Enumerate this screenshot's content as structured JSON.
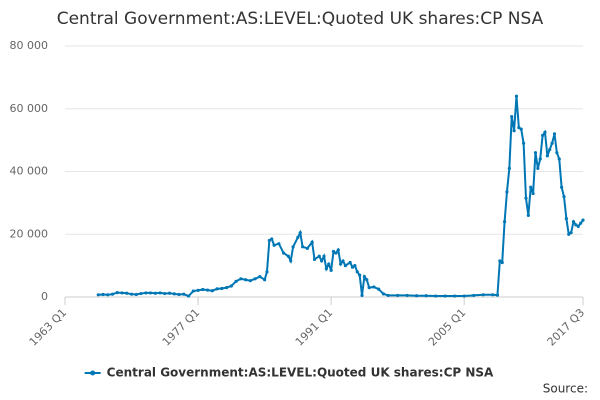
{
  "chart_data": {
    "type": "line",
    "title": "Central Government:AS:LEVEL:Quoted UK shares:CP NSA",
    "source": "Source:",
    "xlim": [
      1963,
      2017.5
    ],
    "xticks": [
      {
        "value": 1963,
        "label": "1963 Q1"
      },
      {
        "value": 1977,
        "label": "1977 Q1"
      },
      {
        "value": 1991,
        "label": "1991 Q1"
      },
      {
        "value": 2005,
        "label": "2005 Q1"
      },
      {
        "value": 2017.5,
        "label": "2017 Q3"
      }
    ],
    "ylim": [
      0,
      80000
    ],
    "yticks": [
      {
        "value": 0,
        "label": "0"
      },
      {
        "value": 20000,
        "label": "20 000"
      },
      {
        "value": 40000,
        "label": "40 000"
      },
      {
        "value": 60000,
        "label": "60 000"
      },
      {
        "value": 80000,
        "label": "80 000"
      }
    ],
    "grid": true,
    "series": [
      {
        "name": "Central Government:AS:LEVEL:Quoted UK shares:CP NSA",
        "color": "#0077b5",
        "x": [
          1966.5,
          1967,
          1967.5,
          1968,
          1968.5,
          1969,
          1969.5,
          1970,
          1970.5,
          1971,
          1971.5,
          1972,
          1972.5,
          1973,
          1973.5,
          1974,
          1974.5,
          1975,
          1975.5,
          1976,
          1976.5,
          1977,
          1977.5,
          1978,
          1978.5,
          1979,
          1979.5,
          1980,
          1980.5,
          1981,
          1981.5,
          1982,
          1982.5,
          1983,
          1983.5,
          1984,
          1984.25,
          1984.5,
          1984.75,
          1985,
          1985.5,
          1986,
          1986.5,
          1986.75,
          1987,
          1987.5,
          1987.75,
          1988,
          1988.5,
          1989,
          1989.25,
          1989.75,
          1990,
          1990.25,
          1990.5,
          1990.75,
          1991,
          1991.25,
          1991.5,
          1991.75,
          1992,
          1992.25,
          1992.5,
          1993,
          1993.25,
          1993.5,
          1993.75,
          1994,
          1994.25,
          1994.5,
          1994.75,
          1995,
          1995.5,
          1996,
          1996.5,
          1997,
          1998,
          1999,
          2000,
          2001,
          2002,
          2003,
          2004,
          2005,
          2006,
          2007,
          2008,
          2008.5,
          2008.75,
          2009,
          2009.25,
          2009.5,
          2009.75,
          2010,
          2010.25,
          2010.5,
          2010.75,
          2011,
          2011.25,
          2011.5,
          2011.75,
          2012,
          2012.25,
          2012.5,
          2012.75,
          2013,
          2013.25,
          2013.5,
          2013.75,
          2014,
          2014.25,
          2014.5,
          2014.75,
          2015,
          2015.25,
          2015.5,
          2015.75,
          2016,
          2016.25,
          2016.5,
          2016.75,
          2017,
          2017.25,
          2017.5
        ],
        "values": [
          700,
          800,
          700,
          900,
          1400,
          1300,
          1200,
          900,
          800,
          1100,
          1300,
          1300,
          1200,
          1300,
          1100,
          1200,
          1000,
          800,
          900,
          300,
          1900,
          2100,
          2400,
          2200,
          2000,
          2600,
          2700,
          3000,
          3500,
          5000,
          5800,
          5500,
          5200,
          5800,
          6500,
          5500,
          8000,
          18000,
          18500,
          16500,
          17000,
          14000,
          13000,
          11500,
          16000,
          19000,
          20500,
          16000,
          15500,
          17500,
          12000,
          13000,
          11500,
          13000,
          9000,
          10500,
          8500,
          14500,
          14000,
          15000,
          10500,
          11500,
          10000,
          11000,
          9500,
          10000,
          8000,
          7000,
          500,
          6500,
          5500,
          3000,
          3200,
          2500,
          1000,
          500,
          500,
          500,
          400,
          400,
          300,
          300,
          300,
          300,
          500,
          700,
          700,
          600,
          11500,
          11000,
          24000,
          33500,
          41000,
          57500,
          53000,
          64000,
          54000,
          53500,
          49000,
          31500,
          26000,
          35000,
          33000,
          46000,
          41000,
          44000,
          51500,
          52500,
          45000,
          47000,
          49000,
          52000,
          46000,
          44000,
          35000,
          32000,
          25000,
          20000,
          20500,
          24000,
          23000,
          22500,
          23500,
          24500
        ]
      }
    ]
  }
}
